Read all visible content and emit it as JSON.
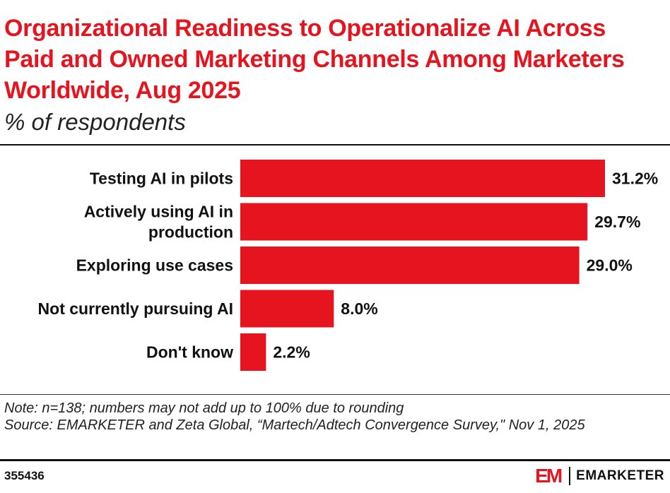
{
  "header": {
    "title": "Organizational Readiness to Operationalize AI Across Paid and Owned Marketing Channels Among Marketers Worldwide, Aug 2025",
    "subtitle": "% of respondents"
  },
  "chart_data": {
    "type": "bar",
    "orientation": "horizontal",
    "title": "Organizational Readiness to Operationalize AI Across Paid and Owned Marketing Channels Among Marketers Worldwide, Aug 2025",
    "subtitle": "% of respondents",
    "categories": [
      [
        "Testing AI in pilots"
      ],
      [
        "Actively using AI in",
        "production"
      ],
      [
        "Exploring use cases"
      ],
      [
        "Not currently pursuing AI"
      ],
      [
        "Don't know"
      ]
    ],
    "values": [
      31.2,
      29.7,
      29.0,
      8.0,
      2.2
    ],
    "value_labels": [
      "31.2%",
      "29.7%",
      "29.0%",
      "8.0%",
      "2.2%"
    ],
    "xlim": [
      0,
      31.2
    ],
    "grid": false,
    "bar_color": "#e5141e"
  },
  "footer": {
    "note": "Note: n=138; numbers may not add up to 100% due to rounding",
    "source": "Source: EMARKETER and Zeta Global, “Martech/Adtech Convergence Survey,\" Nov 1, 2025",
    "chart_id": "355436",
    "brand_mark": "EM",
    "brand_name": "EMARKETER"
  },
  "colors": {
    "accent": "#e5141e",
    "text": "#111111"
  }
}
